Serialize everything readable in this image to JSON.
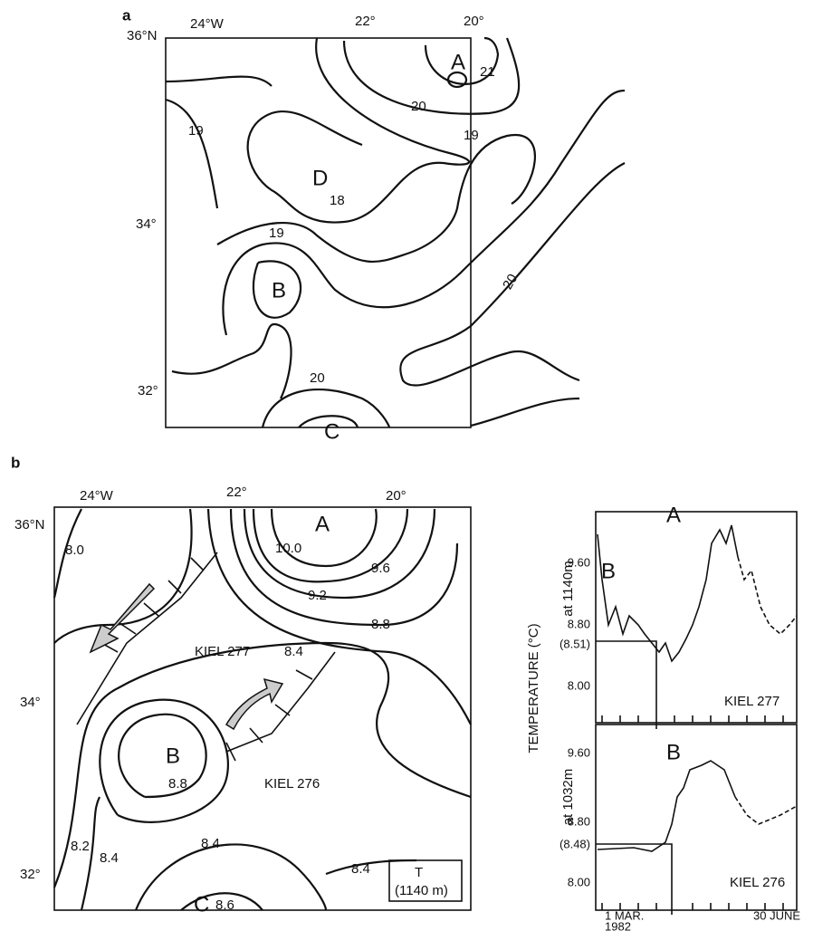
{
  "panel_a": {
    "label": "a",
    "lon_labels": [
      "24°W",
      "22°",
      "20°"
    ],
    "lat_labels": [
      "36°N",
      "34°",
      "32°"
    ],
    "features": [
      "A",
      "D",
      "B",
      "C"
    ],
    "contour_labels": [
      "21",
      "20",
      "19",
      "19",
      "18",
      "19",
      "20",
      "20"
    ]
  },
  "panel_b": {
    "label": "b",
    "lon_labels": [
      "24°W",
      "22°",
      "20°"
    ],
    "lat_labels": [
      "36°N",
      "34°",
      "32°"
    ],
    "features": [
      "A",
      "B",
      "C"
    ],
    "contour_labels": [
      "10.0",
      "9.6",
      "9.2",
      "8.8",
      "8.4",
      "8.0",
      "8.8",
      "8.2",
      "8.4",
      "8.4",
      "8.4",
      "8.6"
    ],
    "moorings": [
      "KIEL 277",
      "KIEL 276"
    ],
    "box_label": [
      "T",
      "(1140 m)"
    ]
  },
  "time_series": {
    "y_axis_title": "TEMPERATURE (°C)",
    "start": [
      "1 MAR.",
      "1982"
    ],
    "end": "30 JUNE",
    "plots": [
      {
        "depth": "at 1140m",
        "ticks": [
          "9.60",
          "8.80",
          "(8.51)",
          "8.00"
        ],
        "features": [
          "B",
          "A"
        ],
        "mooring": "KIEL 277"
      },
      {
        "depth": "at 1032m",
        "ticks": [
          "9.60",
          "8.80",
          "(8.48)",
          "8.00"
        ],
        "features": [
          "B"
        ],
        "mooring": "KIEL 276"
      }
    ]
  }
}
